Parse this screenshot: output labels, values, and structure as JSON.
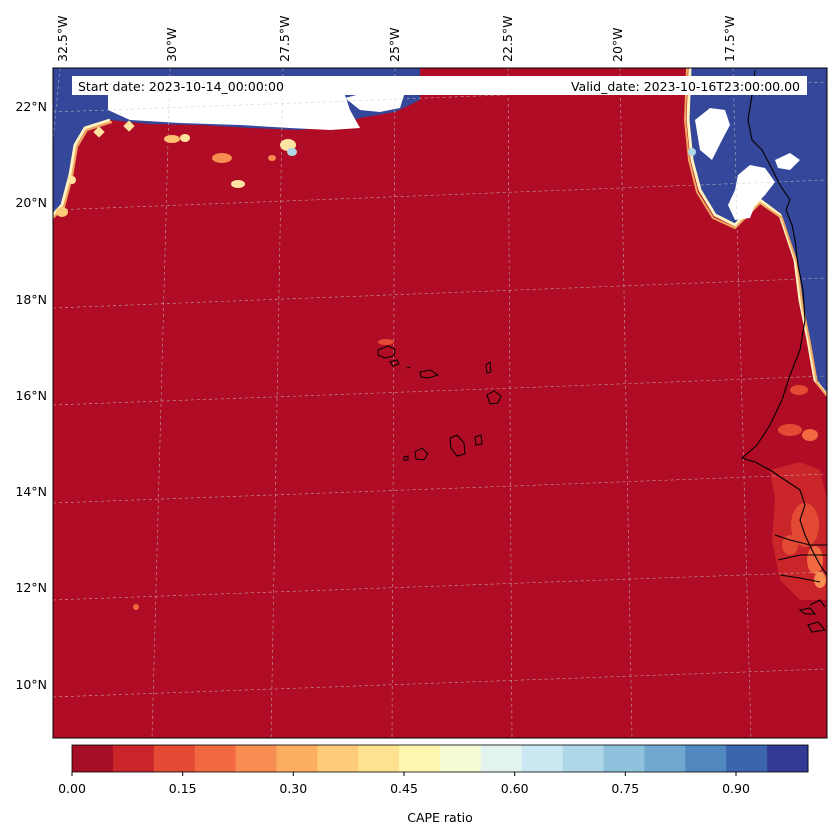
{
  "header": {
    "start_date": "Start date: 2023-10-14_00:00:00",
    "valid_date": "Valid_date: 2023-10-16T23:00:00.00"
  },
  "axes": {
    "lon_labels": [
      "32.5°W",
      "30°W",
      "27.5°W",
      "25°W",
      "22.5°W",
      "20°W",
      "17.5°W"
    ],
    "lat_labels": [
      "22°N",
      "20°N",
      "18°N",
      "16°N",
      "14°N",
      "12°N",
      "10°N"
    ]
  },
  "colorbar": {
    "label": "CAPE ratio",
    "ticks": [
      "0.00",
      "0.15",
      "0.30",
      "0.45",
      "0.60",
      "0.75",
      "0.90"
    ],
    "colors": [
      "#a50f26",
      "#c9252b",
      "#e34a33",
      "#f26841",
      "#f88d52",
      "#fdad60",
      "#fecb79",
      "#fee290",
      "#fff6b0",
      "#f5fbd2",
      "#e2f3f0",
      "#cbe7f2",
      "#aed8e8",
      "#8fc2dd",
      "#70a8cf",
      "#5188c0",
      "#3d65ad",
      "#313b95"
    ]
  },
  "colors": {
    "low_field": "#b00c25",
    "high_field": "#34479a",
    "coast": "#000000"
  }
}
